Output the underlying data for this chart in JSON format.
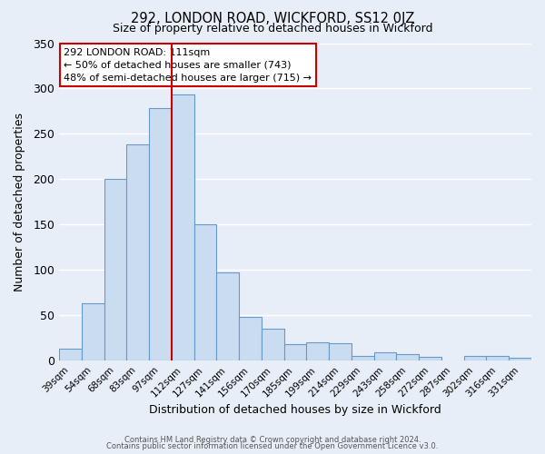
{
  "title1": "292, LONDON ROAD, WICKFORD, SS12 0JZ",
  "title2": "Size of property relative to detached houses in Wickford",
  "xlabel": "Distribution of detached houses by size in Wickford",
  "ylabel": "Number of detached properties",
  "bar_labels": [
    "39sqm",
    "54sqm",
    "68sqm",
    "83sqm",
    "97sqm",
    "112sqm",
    "127sqm",
    "141sqm",
    "156sqm",
    "170sqm",
    "185sqm",
    "199sqm",
    "214sqm",
    "229sqm",
    "243sqm",
    "258sqm",
    "272sqm",
    "287sqm",
    "302sqm",
    "316sqm",
    "331sqm"
  ],
  "bar_heights": [
    13,
    63,
    200,
    238,
    278,
    293,
    150,
    97,
    48,
    35,
    18,
    20,
    19,
    5,
    9,
    7,
    4,
    0,
    5,
    5,
    3
  ],
  "bar_color": "#c9dcf0",
  "bar_edge_color": "#6699cc",
  "vline_color": "#cc0000",
  "vline_index": 5,
  "ylim": [
    0,
    350
  ],
  "yticks": [
    0,
    50,
    100,
    150,
    200,
    250,
    300,
    350
  ],
  "annotation_title": "292 LONDON ROAD: 111sqm",
  "annotation_line1": "← 50% of detached houses are smaller (743)",
  "annotation_line2": "48% of semi-detached houses are larger (715) →",
  "annotation_box_facecolor": "#ffffff",
  "annotation_box_edgecolor": "#cc0000",
  "footer1": "Contains HM Land Registry data © Crown copyright and database right 2024.",
  "footer2": "Contains public sector information licensed under the Open Government Licence v3.0.",
  "bg_color": "#e8eef8",
  "grid_color": "#ffffff"
}
